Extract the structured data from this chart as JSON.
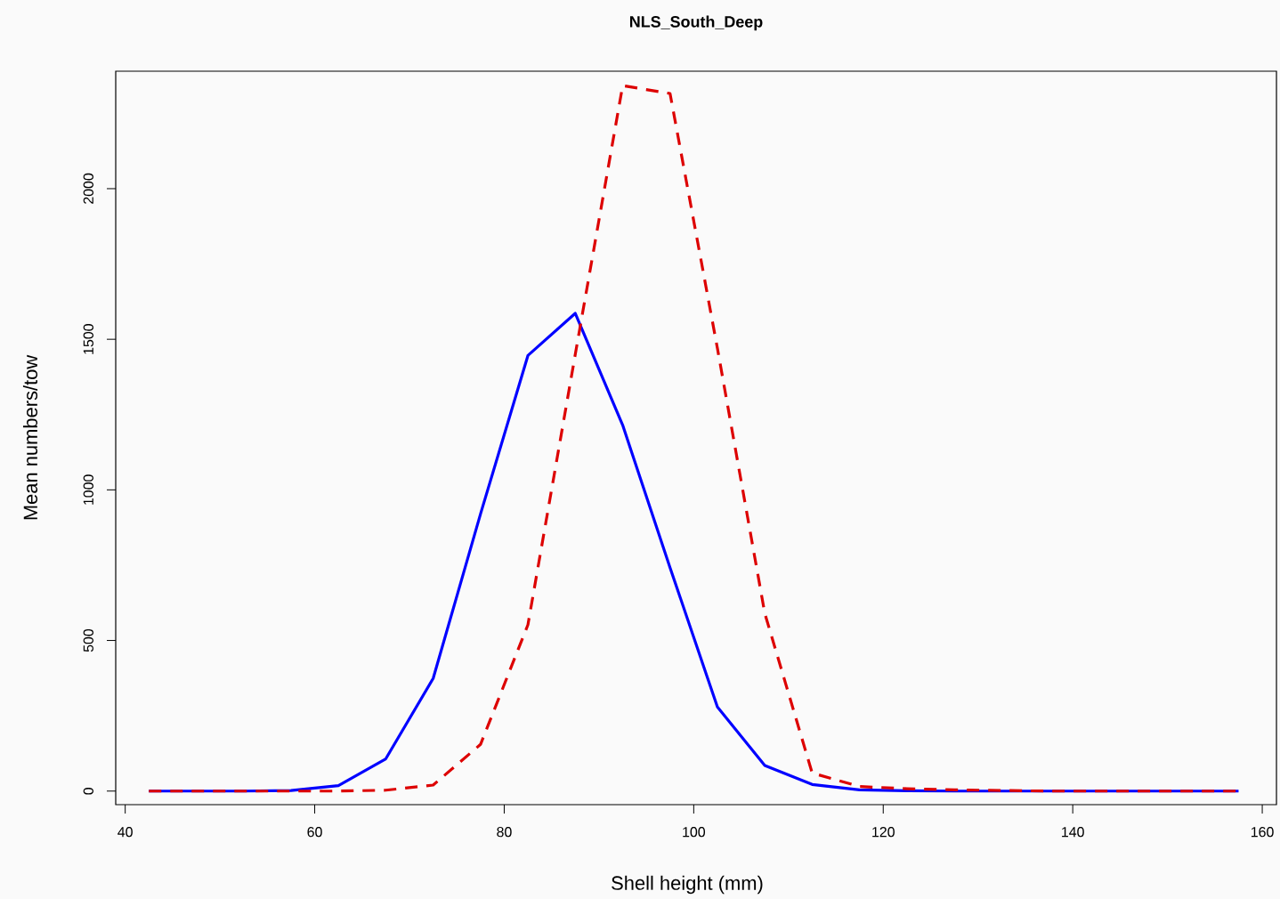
{
  "chart_data": {
    "type": "line",
    "title": "NLS_South_Deep",
    "xlabel": "Shell height (mm)",
    "ylabel": "Mean numbers/tow",
    "x": [
      42.5,
      47.5,
      52.5,
      57.5,
      62.5,
      67.5,
      72.5,
      77.5,
      82.5,
      87.5,
      92.5,
      97.5,
      102.5,
      107.5,
      112.5,
      117.5,
      122.5,
      127.5,
      132.5,
      137.5,
      142.5,
      147.5,
      152.5,
      157.5
    ],
    "series": [
      {
        "color": "#0000ff",
        "line_style": "solid",
        "values": [
          0,
          0,
          0,
          2,
          18,
          107,
          374,
          920,
          1446,
          1586,
          1215,
          742,
          279,
          85,
          22,
          4,
          1,
          0,
          0,
          0,
          0,
          0,
          0,
          0
        ]
      },
      {
        "color": "#dd0000",
        "line_style": "dashed",
        "values": [
          0,
          0,
          0,
          0,
          0,
          3,
          20,
          155,
          552,
          1450,
          2342,
          2316,
          1470,
          590,
          60,
          15,
          8,
          4,
          2,
          0,
          0,
          0,
          0,
          0
        ]
      }
    ],
    "xlim": [
      39,
      161.5
    ],
    "ylim": [
      -45,
      2390
    ],
    "xticks": [
      40,
      60,
      80,
      100,
      120,
      140,
      160
    ],
    "yticks": [
      0,
      500,
      1000,
      1500,
      2000
    ],
    "marker": "none"
  }
}
